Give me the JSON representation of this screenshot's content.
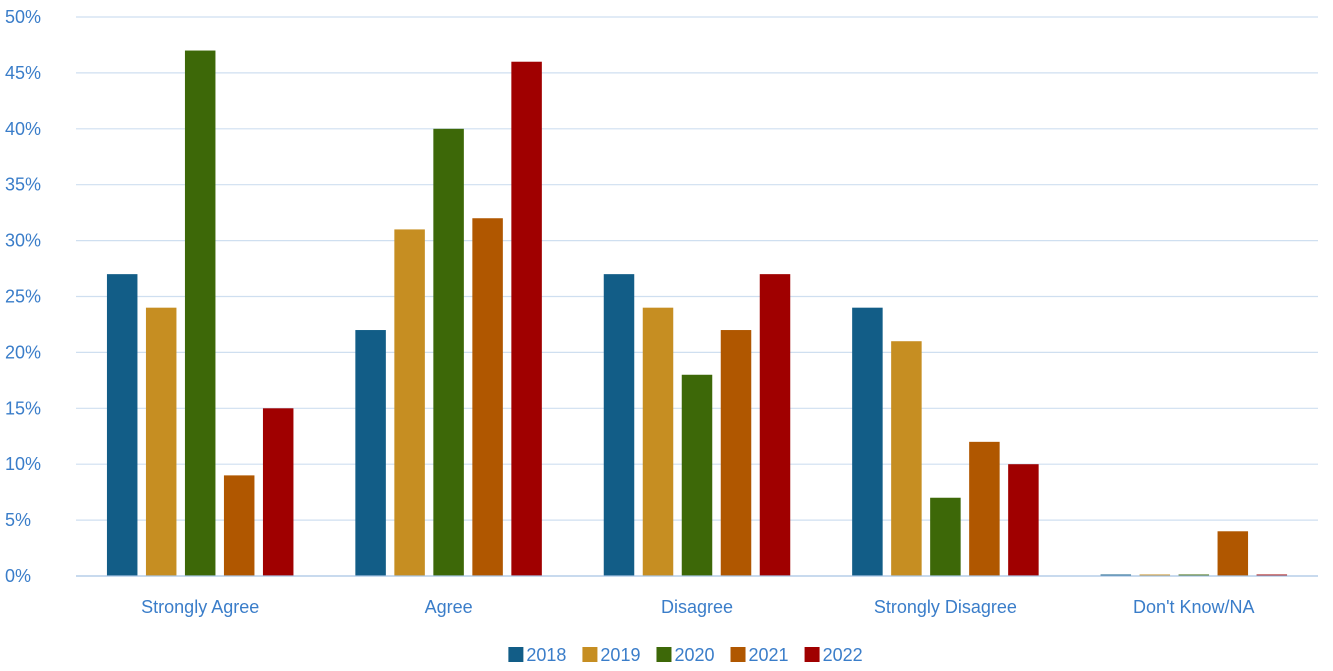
{
  "chart_data": {
    "type": "bar",
    "categories": [
      "Strongly Agree",
      "Agree",
      "Disagree",
      "Strongly Disagree",
      "Don't Know/NA"
    ],
    "series": [
      {
        "name": "2018",
        "color": "#125d87",
        "values": [
          27,
          22,
          27,
          24,
          0
        ]
      },
      {
        "name": "2019",
        "color": "#c68e22",
        "values": [
          24,
          31,
          24,
          21,
          0
        ]
      },
      {
        "name": "2020",
        "color": "#3d6808",
        "values": [
          47,
          40,
          18,
          7,
          0
        ]
      },
      {
        "name": "2021",
        "color": "#b05700",
        "values": [
          9,
          32,
          22,
          12,
          4
        ]
      },
      {
        "name": "2022",
        "color": "#a00000",
        "values": [
          15,
          46,
          27,
          10,
          0
        ]
      }
    ],
    "ylim": [
      0,
      50
    ],
    "yticks": [
      0,
      5,
      10,
      15,
      20,
      25,
      30,
      35,
      40,
      45,
      50
    ],
    "ytick_labels": [
      "0%",
      "5%",
      "10%",
      "15%",
      "20%",
      "25%",
      "30%",
      "35%",
      "40%",
      "45%",
      "50%"
    ],
    "title": "",
    "xlabel": "",
    "ylabel": "",
    "grid": true,
    "legend_position": "bottom",
    "colors": {
      "text": "#3a7dc9",
      "grid": "#cfdff0",
      "axis": "#a6c3e3"
    }
  }
}
